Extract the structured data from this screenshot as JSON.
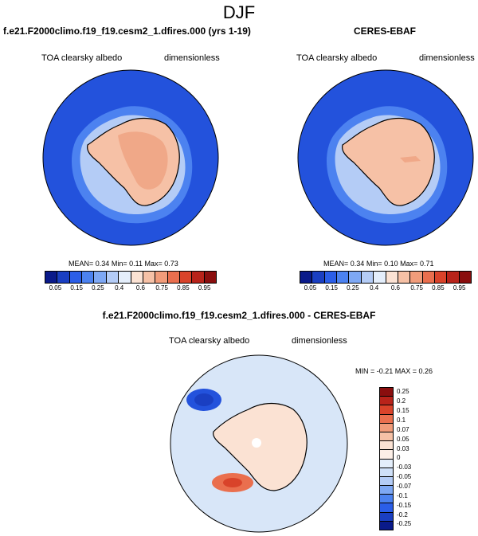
{
  "title": "DJF",
  "panels": {
    "left": {
      "case_title": "f.e21.F2000climo.f19_f19.cesm2_1.dfires.000 (yrs 1-19)",
      "variable": "TOA clearsky albedo",
      "units": "dimensionless",
      "stats": {
        "mean_label": "MEAN=",
        "mean": "0.34",
        "min_label": "Min=",
        "min": "0.11",
        "max_label": "Max=",
        "max": "0.73"
      }
    },
    "right": {
      "case_title": "CERES-EBAF",
      "variable": "TOA clearsky albedo",
      "units": "dimensionless",
      "stats": {
        "mean_label": "MEAN=",
        "mean": "0.34",
        "min_label": "Min=",
        "min": "0.10",
        "max_label": "Max=",
        "max": "0.71"
      }
    },
    "diff": {
      "case_title": "f.e21.F2000climo.f19_f19.cesm2_1.dfires.000 - CERES-EBAF",
      "variable": "TOA clearsky albedo",
      "units": "dimensionless",
      "stats_text": "MIN = -0.21  MAX = 0.26"
    }
  },
  "colorbar_main": {
    "ticks": [
      "0.05",
      "0.15",
      "0.25",
      "0.4",
      "0.6",
      "0.75",
      "0.85",
      "0.95"
    ],
    "colors": [
      "#0a1a8a",
      "#1a3fc2",
      "#2b5ee8",
      "#4c82f0",
      "#7ea8f4",
      "#b4ccf6",
      "#e4eefb",
      "#fbe2d3",
      "#f6c1a6",
      "#f19c7a",
      "#ea6f4e",
      "#d9432a",
      "#b8231a",
      "#8a0e0e"
    ]
  },
  "colorbar_diff": {
    "ticks": [
      "0.25",
      "0.2",
      "0.15",
      "0.1",
      "0.07",
      "0.05",
      "0.03",
      "0",
      "-0.03",
      "-0.05",
      "-0.07",
      "-0.1",
      "-0.15",
      "-0.2",
      "-0.25"
    ],
    "colors": [
      "#8a0e0e",
      "#b8231a",
      "#d9432a",
      "#ea6f4e",
      "#f19c7a",
      "#f6c1a6",
      "#fbe2d3",
      "#fcefe7",
      "#e4eefb",
      "#cfe0f8",
      "#b4ccf6",
      "#7ea8f4",
      "#4c82f0",
      "#2b5ee8",
      "#1a3fc2",
      "#0a1a8a"
    ]
  },
  "maps": {
    "ocean_color": "#2352dc",
    "land_color": "#f6c1a6",
    "interior_color": "#f0a888",
    "ice_edge_color": "#b4ccf6",
    "diff_bg": "#d8e6f8"
  }
}
